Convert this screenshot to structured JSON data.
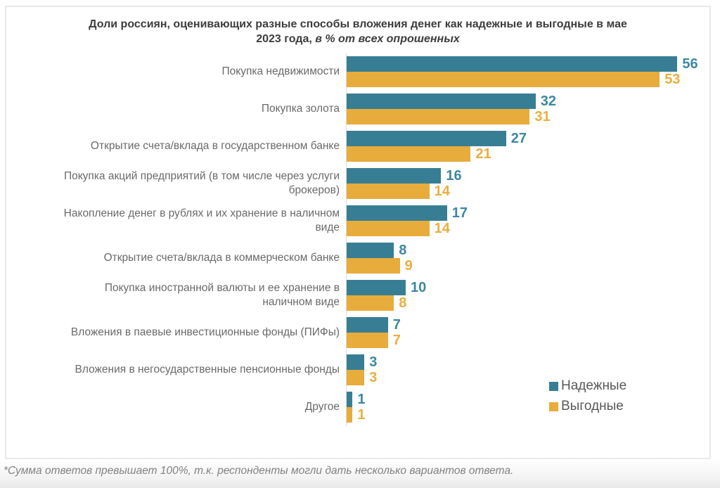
{
  "chart_data": {
    "type": "bar",
    "orientation": "horizontal",
    "title_main": "Доли россиян, оценивающих разные способы вложения денег как надежные и выгодные в мае 2023 года,  ",
    "title_italic": "в % от всех опрошенных",
    "categories": [
      "Покупка недвижимости",
      "Покупка золота",
      "Открытие счета/вклада в государственном банке",
      "Покупка акций предприятий (в том числе через услуги\nброкеров)",
      "Накопление денег в рублях и их хранение в наличном\nвиде",
      "Открытие счета/вклада в коммерческом банке",
      "Покупка иностранной валюты и ее хранение в\nналичном виде",
      "Вложения в паевые инвестиционные фонды (ПИФы)",
      "Вложения в негосударственные пенсионные фонды",
      "Другое"
    ],
    "series": [
      {
        "name": "Надежные",
        "color": "#377E95",
        "label_color": "#3D87A2",
        "values": [
          56,
          32,
          27,
          16,
          17,
          8,
          10,
          7,
          3,
          1
        ]
      },
      {
        "name": "Выгодные",
        "color": "#E8AC3C",
        "label_color": "#EBAE3E",
        "values": [
          53,
          31,
          21,
          14,
          14,
          9,
          8,
          7,
          3,
          1
        ]
      }
    ],
    "xlim": [
      0,
      60
    ],
    "grid": false,
    "value_labels": true,
    "legend_position": "inside-bottom-right",
    "footnote": "*Сумма ответов превышает 100%, т.к. респонденты могли дать несколько вариантов ответа."
  }
}
